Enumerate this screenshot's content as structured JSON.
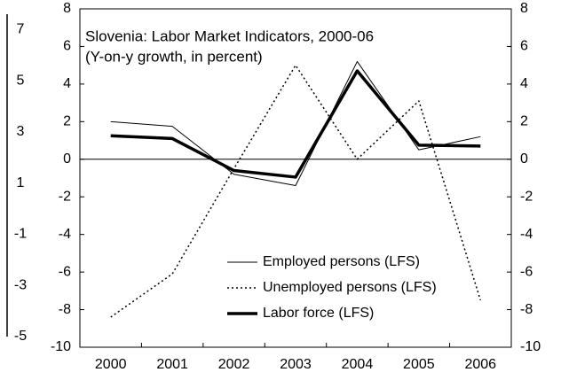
{
  "chart_data": [
    {
      "type": "line",
      "title": "Slovenia: Labor Market Indicators, 2000-06",
      "subtitle": "(Y-on-y growth, in percent)",
      "categories": [
        "2000",
        "2001",
        "2002",
        "2003",
        "2004",
        "2005",
        "2006"
      ],
      "series": [
        {
          "name": "Employed persons (LFS)",
          "color": "#000000",
          "line_width": 1,
          "dash": "none",
          "values": [
            2.0,
            1.75,
            -0.8,
            -1.4,
            5.2,
            0.5,
            1.2
          ]
        },
        {
          "name": "Unemployed persons (LFS)",
          "color": "#000000",
          "line_width": 1.5,
          "dash": "2,3",
          "values": [
            -8.4,
            -6.1,
            -0.5,
            5.0,
            0.0,
            3.1,
            -7.5
          ]
        },
        {
          "name": "Labor force (LFS)",
          "color": "#000000",
          "line_width": 3.5,
          "dash": "none",
          "values": [
            1.25,
            1.1,
            -0.6,
            -0.95,
            4.7,
            0.75,
            0.7
          ]
        }
      ],
      "ylim": [
        -10,
        8
      ],
      "yticks": [
        -10,
        -8,
        -6,
        -4,
        -2,
        0,
        2,
        4,
        6,
        8
      ],
      "y2lim": [
        -10,
        8
      ],
      "y2ticks": [
        -10,
        -8,
        -6,
        -4,
        -2,
        0,
        2,
        4,
        6,
        8
      ],
      "legend": "bottom-right"
    },
    {
      "type": "axis",
      "ylim": [
        -5,
        7.6
      ],
      "yticks": [
        7,
        5,
        3,
        1,
        -1,
        -3,
        -5
      ]
    }
  ]
}
